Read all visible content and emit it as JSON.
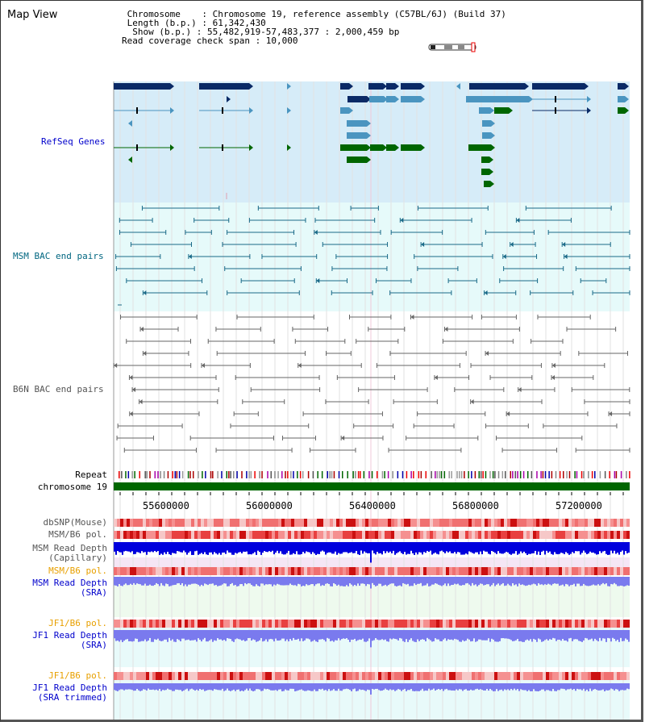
{
  "title": "Map View",
  "info": {
    "lines": [
      " Chromosome    : Chromosome 19, reference assembly (C57BL/6J) (Build 37)",
      " Length (b.p.) : 61,342,430",
      "  Show (b.p.) : 55,482,919-57,483,377 : 2,000,459 bp",
      "Read coverage check span : 10,000"
    ]
  },
  "tracks": {
    "refseq": "RefSeq Genes",
    "msm_bac": "MSM BAC end pairs",
    "b6n_bac": "B6N BAC end pairs",
    "repeat": "Repeat",
    "chromosome": "chromosome 19",
    "dbsnp": "dbSNP(Mouse)",
    "msm_b6_pol": "MSM/B6 pol.",
    "msm_depth_cap_1": "MSM Read Depth",
    "msm_depth_cap_2": "(Capillary)",
    "msm_b6_pol_2": "MSM/B6 pol.",
    "msm_depth_sra_1": "MSM Read Depth",
    "msm_depth_sra_2": "(SRA)",
    "jf1_b6_pol": "JF1/B6 pol.",
    "jf1_depth_sra_1": "JF1 Read Depth",
    "jf1_depth_sra_2": "(SRA)",
    "jf1_b6_pol_2": "JF1/B6 pol.",
    "jf1_depth_trim_1": "JF1 Read Depth",
    "jf1_depth_trim_2": "(SRA trimmed)"
  },
  "axis": {
    "ticks": [
      "55600000",
      "56000000",
      "56400000",
      "56800000",
      "57200000"
    ]
  },
  "colors": {
    "refseq_bg": "#d6ecf8",
    "bac_bg": "#e6fafa",
    "b6n_bg": "#ffffff",
    "label_blue": "#0000cc",
    "label_teal": "#006680",
    "label_gray": "#555555",
    "label_orange": "#e8a000",
    "gene_navy": "#0a2a66",
    "gene_mid": "#4a95c0",
    "gene_green": "#006600",
    "chrom_green": "#006600",
    "depth_blue": "#0000dd",
    "depth_light": "#7a7aee"
  }
}
